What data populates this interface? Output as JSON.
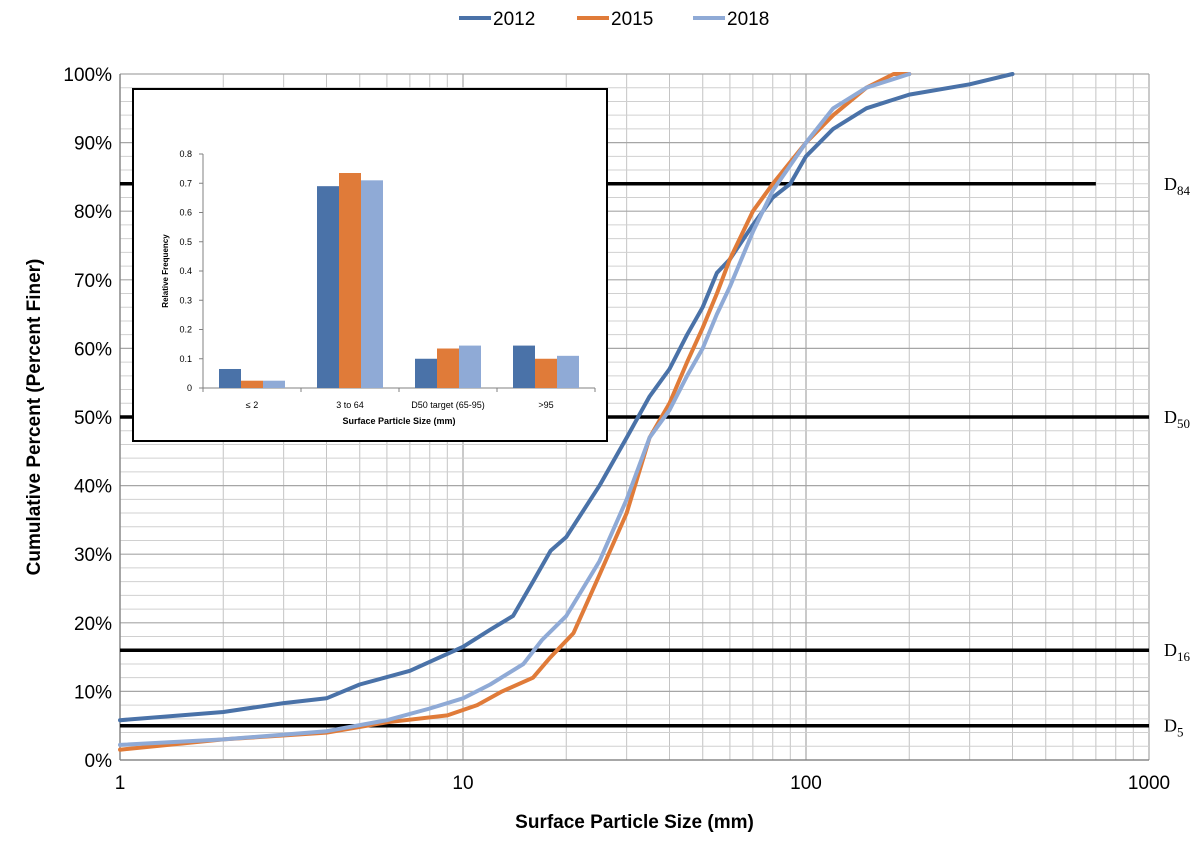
{
  "chart_data": [
    {
      "type": "line",
      "xscale": "log",
      "xlim": [
        1,
        1000
      ],
      "ylim": [
        0,
        100
      ],
      "xlabel": "Surface Particle Size (mm)",
      "ylabel": "Cumulative Percent (Percent Finer)",
      "x_ticks": [
        "1",
        "10",
        "100",
        "1000"
      ],
      "y_ticks": [
        "0%",
        "10%",
        "20%",
        "30%",
        "40%",
        "50%",
        "60%",
        "70%",
        "80%",
        "90%",
        "100%"
      ],
      "grid": true,
      "legend_position": "top-center",
      "series": [
        {
          "name": "2012",
          "color": "#4a72a8",
          "x": [
            1,
            2,
            3,
            4,
            5,
            7,
            10,
            12,
            14,
            16,
            18,
            20,
            25,
            30,
            35,
            40,
            45,
            50,
            55,
            60,
            70,
            80,
            90,
            100,
            120,
            150,
            200,
            300,
            400
          ],
          "y": [
            5.8,
            7,
            8.3,
            9,
            11,
            13,
            16.5,
            19,
            21,
            26,
            30.5,
            32.5,
            40,
            47,
            53,
            57,
            62,
            66,
            71,
            73,
            78,
            82,
            84,
            88,
            92,
            95,
            97,
            98.5,
            100
          ]
        },
        {
          "name": "2015",
          "color": "#e07b39",
          "x": [
            1,
            2,
            4,
            6,
            9,
            11,
            13,
            16,
            18,
            21,
            25,
            30,
            35,
            40,
            45,
            50,
            55,
            60,
            70,
            80,
            100,
            120,
            150,
            180,
            200
          ],
          "y": [
            1.5,
            3,
            4,
            5.5,
            6.5,
            8,
            10,
            12,
            15,
            18.5,
            27,
            36,
            47,
            52,
            58,
            63,
            68,
            73,
            80,
            84,
            90,
            94,
            98,
            100,
            100
          ]
        },
        {
          "name": "2018",
          "color": "#8faad6",
          "x": [
            1,
            2,
            4,
            6,
            8,
            10,
            12,
            15,
            17,
            20,
            25,
            30,
            35,
            40,
            45,
            50,
            55,
            60,
            70,
            80,
            100,
            120,
            150,
            200
          ],
          "y": [
            2.2,
            3,
            4.2,
            5.8,
            7.5,
            9,
            11,
            14,
            17.5,
            21,
            29,
            38,
            47,
            51,
            56,
            60,
            65,
            69,
            77,
            83,
            90,
            95,
            98,
            100
          ]
        }
      ],
      "reference_lines": [
        {
          "y": 84,
          "label_main": "D",
          "label_sub": "84",
          "x_end": 700
        },
        {
          "y": 50,
          "label_main": "D",
          "label_sub": "50",
          "x_end": 1000
        },
        {
          "y": 16,
          "label_main": "D",
          "label_sub": "16",
          "x_end": 1000
        },
        {
          "y": 5,
          "label_main": "D",
          "label_sub": "5",
          "x_end": 1000
        }
      ]
    },
    {
      "type": "bar",
      "title": "",
      "xlabel": "Surface Particle Size (mm)",
      "ylabel": "Relative Frequency",
      "ylim": [
        0,
        0.8
      ],
      "y_ticks": [
        "0",
        "0.1",
        "0.2",
        "0.3",
        "0.4",
        "0.5",
        "0.6",
        "0.7",
        "0.8"
      ],
      "categories": [
        "≤ 2",
        "3 to 64",
        "D50 target (65-95)",
        ">95"
      ],
      "series": [
        {
          "name": "2012",
          "color": "#4a72a8",
          "values": [
            0.065,
            0.69,
            0.1,
            0.145
          ]
        },
        {
          "name": "2015",
          "color": "#e07b39",
          "values": [
            0.025,
            0.735,
            0.135,
            0.1
          ]
        },
        {
          "name": "2018",
          "color": "#8faad6",
          "values": [
            0.025,
            0.71,
            0.145,
            0.11
          ]
        }
      ]
    }
  ]
}
